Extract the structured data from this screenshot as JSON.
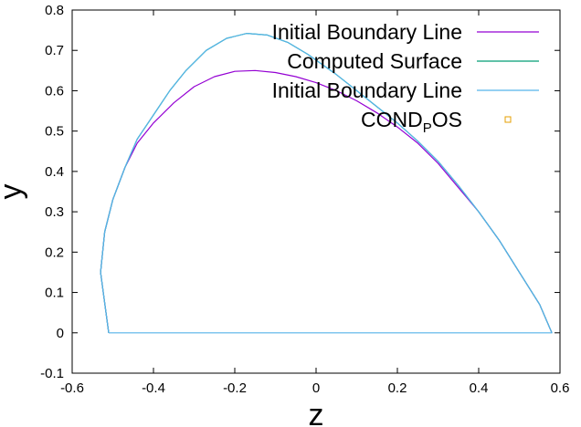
{
  "chart_data": {
    "type": "line",
    "xlabel": "z",
    "ylabel": "y",
    "xlim": [
      -0.6,
      0.6
    ],
    "ylim": [
      -0.1,
      0.8
    ],
    "xticks": [
      "-0.6",
      "-0.4",
      "-0.2",
      "0",
      "0.2",
      "0.4",
      "0.6"
    ],
    "yticks": [
      "-0.1",
      "0",
      "0.1",
      "0.2",
      "0.3",
      "0.4",
      "0.5",
      "0.6",
      "0.7",
      "0.8"
    ],
    "grid": false,
    "legend_position": "top-right",
    "series": [
      {
        "name": "Initial Boundary Line",
        "color": "#9400d3",
        "style": "line",
        "points": [
          [
            -0.51,
            0.0
          ],
          [
            -0.53,
            0.15
          ],
          [
            -0.52,
            0.25
          ],
          [
            -0.5,
            0.33
          ],
          [
            -0.47,
            0.41
          ],
          [
            -0.44,
            0.47
          ],
          [
            -0.4,
            0.52
          ],
          [
            -0.35,
            0.57
          ],
          [
            -0.3,
            0.61
          ],
          [
            -0.25,
            0.635
          ],
          [
            -0.2,
            0.648
          ],
          [
            -0.15,
            0.65
          ],
          [
            -0.1,
            0.645
          ],
          [
            -0.05,
            0.635
          ],
          [
            0.0,
            0.62
          ],
          [
            0.05,
            0.6
          ],
          [
            0.1,
            0.575
          ],
          [
            0.15,
            0.545
          ],
          [
            0.2,
            0.51
          ],
          [
            0.25,
            0.47
          ],
          [
            0.3,
            0.42
          ],
          [
            0.35,
            0.36
          ],
          [
            0.4,
            0.3
          ],
          [
            0.45,
            0.23
          ],
          [
            0.5,
            0.15
          ],
          [
            0.55,
            0.07
          ],
          [
            0.58,
            0.0
          ]
        ]
      },
      {
        "name": "Computed Surface",
        "color": "#009e73",
        "style": "line",
        "points": [
          [
            -0.51,
            0.0
          ],
          [
            -0.53,
            0.15
          ],
          [
            -0.52,
            0.25
          ],
          [
            -0.5,
            0.33
          ],
          [
            -0.47,
            0.41
          ],
          [
            -0.44,
            0.48
          ],
          [
            -0.4,
            0.54
          ],
          [
            -0.36,
            0.6
          ],
          [
            -0.32,
            0.65
          ],
          [
            -0.27,
            0.7
          ],
          [
            -0.22,
            0.73
          ],
          [
            -0.17,
            0.742
          ],
          [
            -0.12,
            0.738
          ],
          [
            -0.07,
            0.72
          ],
          [
            -0.02,
            0.69
          ],
          [
            0.05,
            0.64
          ],
          [
            0.1,
            0.6
          ],
          [
            0.15,
            0.56
          ],
          [
            0.2,
            0.52
          ],
          [
            0.25,
            0.475
          ],
          [
            0.3,
            0.425
          ],
          [
            0.35,
            0.365
          ],
          [
            0.4,
            0.3
          ],
          [
            0.45,
            0.23
          ],
          [
            0.5,
            0.15
          ],
          [
            0.55,
            0.07
          ],
          [
            0.58,
            0.0
          ]
        ]
      },
      {
        "name": "Initial Boundary Line",
        "color": "#56b4e9",
        "style": "line",
        "points": [
          [
            -0.51,
            0.0
          ],
          [
            -0.53,
            0.15
          ],
          [
            -0.52,
            0.25
          ],
          [
            -0.5,
            0.33
          ],
          [
            -0.47,
            0.41
          ],
          [
            -0.44,
            0.48
          ],
          [
            -0.4,
            0.54
          ],
          [
            -0.36,
            0.6
          ],
          [
            -0.32,
            0.65
          ],
          [
            -0.27,
            0.7
          ],
          [
            -0.22,
            0.73
          ],
          [
            -0.17,
            0.742
          ],
          [
            -0.12,
            0.738
          ],
          [
            -0.07,
            0.72
          ],
          [
            -0.02,
            0.69
          ],
          [
            0.05,
            0.64
          ],
          [
            0.1,
            0.6
          ],
          [
            0.15,
            0.56
          ],
          [
            0.2,
            0.52
          ],
          [
            0.25,
            0.475
          ],
          [
            0.3,
            0.425
          ],
          [
            0.35,
            0.365
          ],
          [
            0.4,
            0.3
          ],
          [
            0.45,
            0.23
          ],
          [
            0.5,
            0.15
          ],
          [
            0.55,
            0.07
          ],
          [
            0.58,
            0.0
          ],
          [
            -0.51,
            0.0
          ]
        ]
      },
      {
        "name": "COND_POS",
        "color": "#e69f00",
        "style": "points",
        "points": []
      }
    ],
    "legend": [
      {
        "label": "Initial Boundary Line",
        "color": "#9400d3",
        "marker": "line"
      },
      {
        "label": "Computed Surface",
        "color": "#009e73",
        "marker": "line"
      },
      {
        "label": "Initial Boundary Line",
        "color": "#56b4e9",
        "marker": "line"
      },
      {
        "label_main": "COND",
        "label_sub": "P",
        "label_tail": "OS",
        "color": "#e69f00",
        "marker": "square"
      }
    ]
  }
}
